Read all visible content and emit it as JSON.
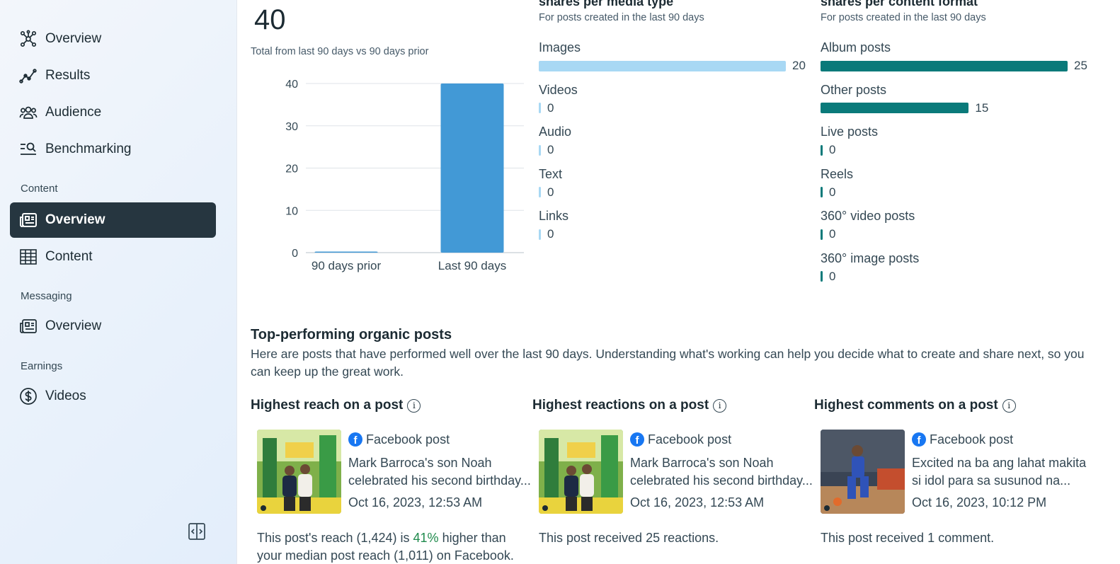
{
  "sidebar": {
    "items": [
      {
        "label": "Overview",
        "icon": "network-icon"
      },
      {
        "label": "Results",
        "icon": "trend-icon"
      },
      {
        "label": "Audience",
        "icon": "people-icon"
      },
      {
        "label": "Benchmarking",
        "icon": "benchmark-icon"
      }
    ],
    "sections": {
      "content": {
        "heading": "Content",
        "items": [
          {
            "label": "Overview",
            "active": true
          },
          {
            "label": "Content"
          }
        ]
      },
      "messaging": {
        "heading": "Messaging",
        "items": [
          {
            "label": "Overview"
          }
        ]
      },
      "earnings": {
        "heading": "Earnings",
        "items": [
          {
            "label": "Videos"
          }
        ]
      }
    }
  },
  "shares_total": {
    "value": "40",
    "subtitle": "Total from last 90 days vs 90 days prior"
  },
  "chart_data": {
    "type": "bar",
    "categories": [
      "90 days prior",
      "Last 90 days"
    ],
    "values": [
      0,
      40
    ],
    "ylim": [
      0,
      40
    ],
    "yticks": [
      "40",
      "30",
      "20",
      "10",
      "0"
    ],
    "grid": true,
    "color": "#4299d6"
  },
  "media_type": {
    "title": "shares per media type",
    "subtitle": "For posts created in the last 90 days",
    "color": "#a8d8f4",
    "max": 20,
    "rows": [
      {
        "label": "Images",
        "value": 20,
        "display": "20"
      },
      {
        "label": "Videos",
        "value": 0,
        "display": "0"
      },
      {
        "label": "Audio",
        "value": 0,
        "display": "0"
      },
      {
        "label": "Text",
        "value": 0,
        "display": "0"
      },
      {
        "label": "Links",
        "value": 0,
        "display": "0"
      }
    ]
  },
  "content_format": {
    "title": "shares per content format",
    "subtitle": "For posts created in the last 90 days",
    "color": "#0a7a7a",
    "max": 25,
    "rows": [
      {
        "label": "Album posts",
        "value": 25,
        "display": "25"
      },
      {
        "label": "Other posts",
        "value": 15,
        "display": "15"
      },
      {
        "label": "Live posts",
        "value": 0,
        "display": "0"
      },
      {
        "label": "Reels",
        "value": 0,
        "display": "0"
      },
      {
        "label": "360° video posts",
        "value": 0,
        "display": "0"
      },
      {
        "label": "360° image posts",
        "value": 0,
        "display": "0"
      }
    ]
  },
  "top_posts": {
    "title": "Top-performing organic posts",
    "description": "Here are posts that have performed well over the last 90 days. Understanding what's working can help you decide what to create and share next, so you can keep up the great work.",
    "cards": [
      {
        "title": "Highest reach on a post",
        "type": "Facebook post",
        "text": "Mark Barroca's son Noah celebrated his second birthday...",
        "date": "Oct 16, 2023, 12:53 AM",
        "foot_pre": "This post's reach (1,424) is ",
        "foot_highlight": "41%",
        "foot_post": " higher than your median post reach (1,011) on Facebook."
      },
      {
        "title": "Highest reactions on a post",
        "type": "Facebook post",
        "text": "Mark Barroca's son Noah celebrated his second birthday...",
        "date": "Oct 16, 2023, 12:53 AM",
        "foot": "This post received 25 reactions."
      },
      {
        "title": "Highest comments on a post",
        "type": "Facebook post",
        "text": "Excited na ba ang lahat makita si idol para sa susunod na...",
        "date": "Oct 16, 2023, 10:12 PM",
        "foot": "This post received 1 comment."
      }
    ]
  }
}
